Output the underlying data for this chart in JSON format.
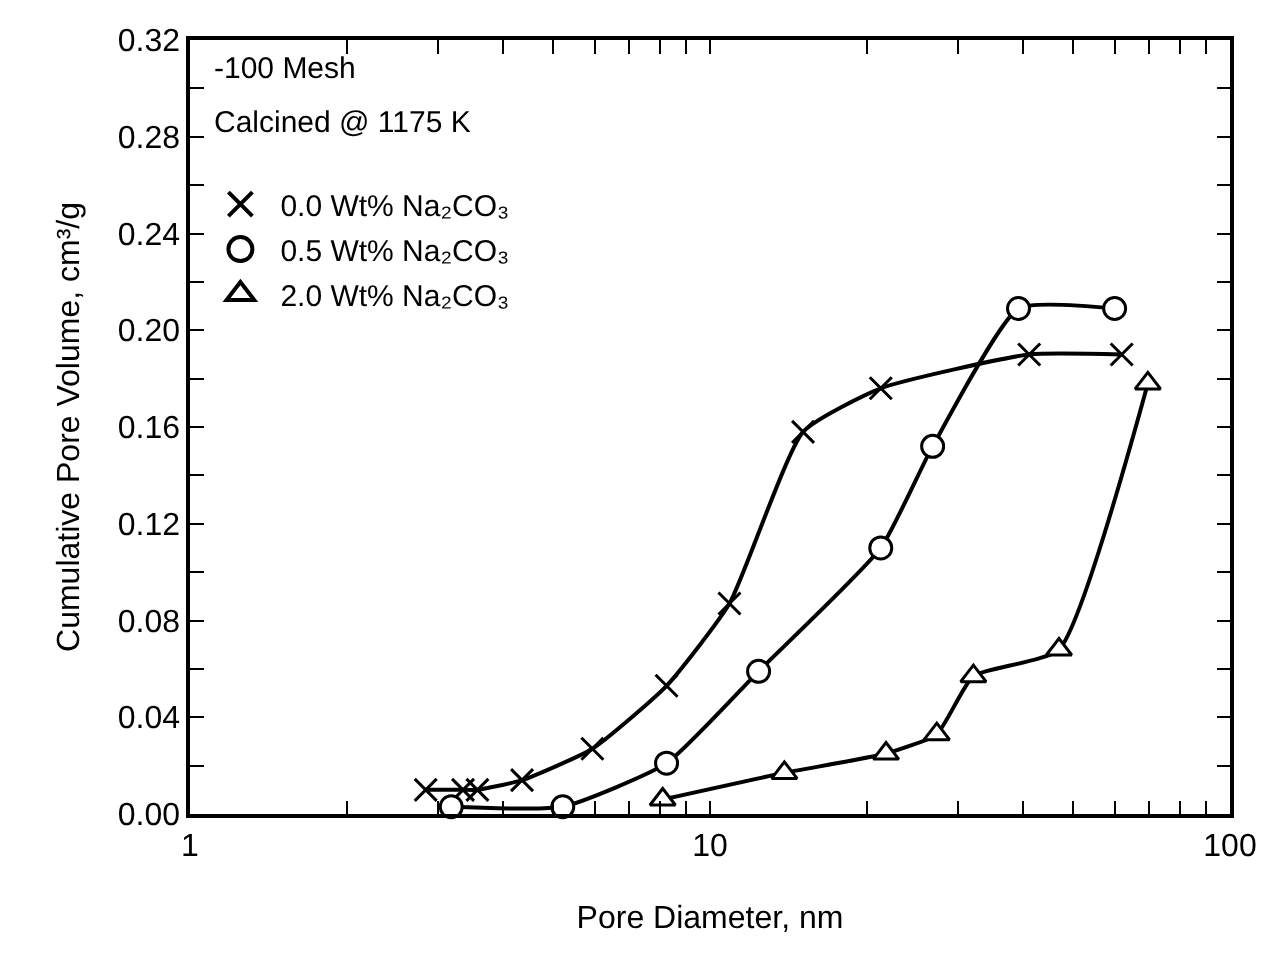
{
  "chart_data": {
    "type": "line",
    "xlabel": "Pore Diameter, nm",
    "ylabel": "Cumulative Pore Volume, cm³/g",
    "annotations": [
      "-100 Mesh",
      "Calcined @ 1175 K"
    ],
    "log": "x",
    "legend": "top left",
    "line_style": "solid",
    "xlim": [
      1,
      100
    ],
    "xticks": [
      1,
      {
        "value": 2,
        "label": null
      },
      {
        "value": 3,
        "label": null
      },
      {
        "value": 4,
        "label": null
      },
      {
        "value": 5,
        "label": null
      },
      {
        "value": 6,
        "label": null
      },
      {
        "value": 7,
        "label": null
      },
      {
        "value": 8,
        "label": null
      },
      {
        "value": 9,
        "label": null
      },
      10,
      {
        "value": 20,
        "label": null
      },
      {
        "value": 30,
        "label": null
      },
      {
        "value": 40,
        "label": null
      },
      {
        "value": 50,
        "label": null
      },
      {
        "value": 60,
        "label": null
      },
      {
        "value": 70,
        "label": null
      },
      {
        "value": 80,
        "label": null
      },
      {
        "value": 90,
        "label": null
      },
      100
    ],
    "ylim": [
      0,
      0.32
    ],
    "yticks": [
      {
        "value": 0,
        "label": "0.00"
      },
      {
        "value": 0.02,
        "label": null
      },
      {
        "value": 0.04,
        "label": "0.04"
      },
      {
        "value": 0.06,
        "label": null
      },
      {
        "value": 0.08,
        "label": "0.08"
      },
      {
        "value": 0.1,
        "label": null
      },
      {
        "value": 0.12,
        "label": "0.12"
      },
      {
        "value": 0.14,
        "label": null
      },
      {
        "value": 0.16,
        "label": "0.16"
      },
      {
        "value": 0.18,
        "label": null
      },
      {
        "value": 0.2,
        "label": "0.20"
      },
      {
        "value": 0.22,
        "label": null
      },
      {
        "value": 0.24,
        "label": "0.24"
      },
      {
        "value": 0.26,
        "label": null
      },
      {
        "value": 0.28,
        "label": "0.28"
      },
      {
        "value": 0.3,
        "label": null
      },
      {
        "value": 0.32,
        "label": "0.32"
      }
    ],
    "series": [
      {
        "name": "0.0 Wt% Na₂CO₃",
        "color": "#000000",
        "marker": "cross",
        "x": [
          2.84,
          3.35,
          3.57,
          4.35,
          5.94,
          8.25,
          10.9,
          15.1,
          21.3,
          41.1,
          61.9
        ],
        "values": [
          0.01,
          0.01,
          0.01,
          0.014,
          0.027,
          0.053,
          0.087,
          0.158,
          0.176,
          0.19,
          0.19
        ]
      },
      {
        "name": "0.5 Wt% Na₂CO₃",
        "color": "#000000",
        "marker": "circle",
        "x": [
          3.18,
          5.21,
          8.25,
          12.4,
          21.3,
          26.8,
          39.2,
          60.0
        ],
        "values": [
          0.003,
          0.003,
          0.021,
          0.059,
          0.11,
          0.152,
          0.209,
          0.209
        ]
      },
      {
        "name": "2.0 Wt% Na₂CO₃",
        "color": "#000000",
        "marker": "triangle",
        "x": [
          8.11,
          13.9,
          21.8,
          27.3,
          32.1,
          46.9,
          69.5
        ],
        "values": [
          0.006,
          0.017,
          0.025,
          0.033,
          0.057,
          0.068,
          0.178
        ]
      }
    ]
  }
}
